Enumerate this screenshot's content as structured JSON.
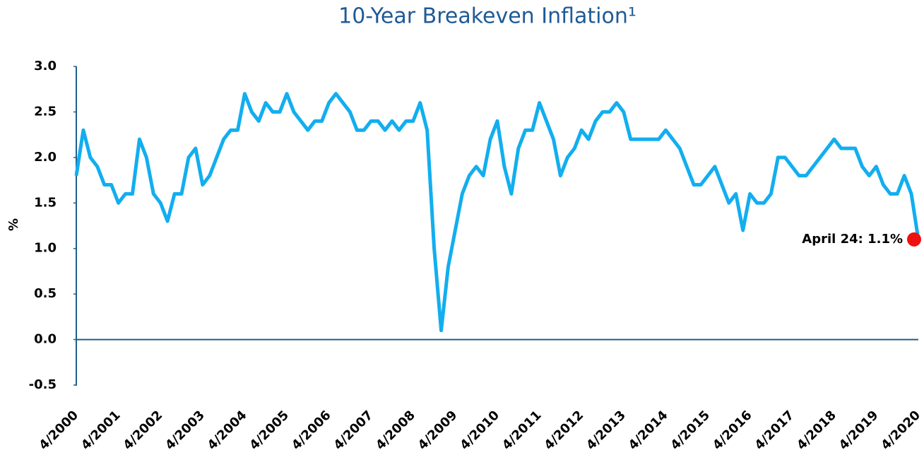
{
  "chart_data": {
    "type": "line",
    "title": "10-Year Breakeven Inflation¹",
    "y_label": "%",
    "categories": [
      "4/2000",
      null,
      null,
      null,
      null,
      null,
      "4/2001",
      null,
      null,
      null,
      null,
      null,
      "4/2002",
      null,
      null,
      null,
      null,
      null,
      "4/2003",
      null,
      null,
      null,
      null,
      null,
      "4/2004",
      null,
      null,
      null,
      null,
      null,
      "4/2005",
      null,
      null,
      null,
      null,
      null,
      "4/2006",
      null,
      null,
      null,
      null,
      null,
      "4/2007",
      null,
      null,
      null,
      null,
      null,
      "4/2008",
      null,
      null,
      null,
      null,
      null,
      "4/2009",
      null,
      null,
      null,
      null,
      null,
      "4/2010",
      null,
      null,
      null,
      null,
      null,
      "4/2011",
      null,
      null,
      null,
      null,
      null,
      "4/2012",
      null,
      null,
      null,
      null,
      null,
      "4/2013",
      null,
      null,
      null,
      null,
      null,
      "4/2014",
      null,
      null,
      null,
      null,
      null,
      "4/2015",
      null,
      null,
      null,
      null,
      null,
      "4/2016",
      null,
      null,
      null,
      null,
      null,
      "4/2017",
      null,
      null,
      null,
      null,
      null,
      "4/2018",
      null,
      null,
      null,
      null,
      null,
      "4/2019",
      null,
      null,
      null,
      null,
      null,
      "4/2020"
    ],
    "series": [
      {
        "color": "#12aeef",
        "values": [
          1.8,
          2.3,
          2.0,
          1.9,
          1.7,
          1.7,
          1.5,
          1.6,
          1.6,
          2.2,
          2.0,
          1.6,
          1.5,
          1.3,
          1.6,
          1.6,
          2.0,
          2.1,
          1.7,
          1.8,
          2.0,
          2.2,
          2.3,
          2.3,
          2.7,
          2.5,
          2.4,
          2.6,
          2.5,
          2.5,
          2.7,
          2.5,
          2.4,
          2.3,
          2.4,
          2.4,
          2.6,
          2.7,
          2.6,
          2.5,
          2.3,
          2.3,
          2.4,
          2.4,
          2.3,
          2.4,
          2.3,
          2.4,
          2.4,
          2.6,
          2.3,
          1.0,
          0.1,
          0.8,
          1.2,
          1.6,
          1.8,
          1.9,
          1.8,
          2.2,
          2.4,
          1.9,
          1.6,
          2.1,
          2.3,
          2.3,
          2.6,
          2.4,
          2.2,
          1.8,
          2.0,
          2.1,
          2.3,
          2.2,
          2.4,
          2.5,
          2.5,
          2.6,
          2.5,
          2.2,
          2.2,
          2.2,
          2.2,
          2.2,
          2.3,
          2.2,
          2.1,
          1.9,
          1.7,
          1.7,
          1.8,
          1.9,
          1.7,
          1.5,
          1.6,
          1.2,
          1.6,
          1.5,
          1.5,
          1.6,
          2.0,
          2.0,
          1.9,
          1.8,
          1.8,
          1.9,
          2.0,
          2.1,
          2.2,
          2.1,
          2.1,
          2.1,
          1.9,
          1.8,
          1.9,
          1.7,
          1.6,
          1.6,
          1.8,
          1.6,
          1.1
        ]
      }
    ],
    "annotation": {
      "text": "April 24: 1.1%",
      "color": "#ee1111"
    },
    "ylim": [
      -0.5,
      3.0
    ],
    "yticks": [
      {
        "value": -0.5,
        "label": "-0.5"
      },
      {
        "value": 0,
        "label": "0.0"
      },
      0.5,
      {
        "value": 1,
        "label": "1.0"
      },
      1.5,
      {
        "value": 2,
        "label": "2.0"
      },
      2.5,
      {
        "value": 3,
        "label": "3.0"
      }
    ]
  }
}
